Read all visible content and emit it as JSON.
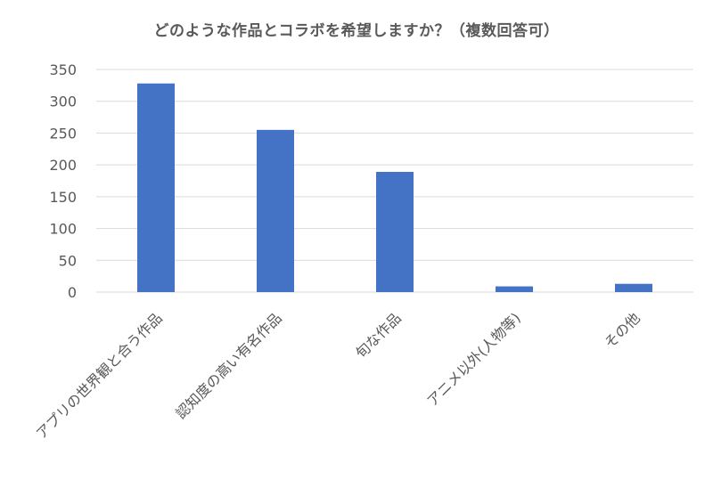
{
  "chart_data": {
    "type": "bar",
    "title": "どのような作品とコラボを希望しますか？（複数回答可）",
    "categories": [
      "アプリの世界観と合う作品",
      "認知度の高い有名作品",
      "旬な作品",
      "アニメ以外(人物等)",
      "その他"
    ],
    "values": [
      328,
      255,
      189,
      9,
      13
    ],
    "ylim": [
      0,
      350
    ],
    "yticks": [
      0,
      50,
      100,
      150,
      200,
      250,
      300,
      350
    ],
    "grid": true,
    "legend": "none",
    "bar_color": "#4472C4",
    "grid_color": "#D9D9D9",
    "text_color": "#595959"
  }
}
